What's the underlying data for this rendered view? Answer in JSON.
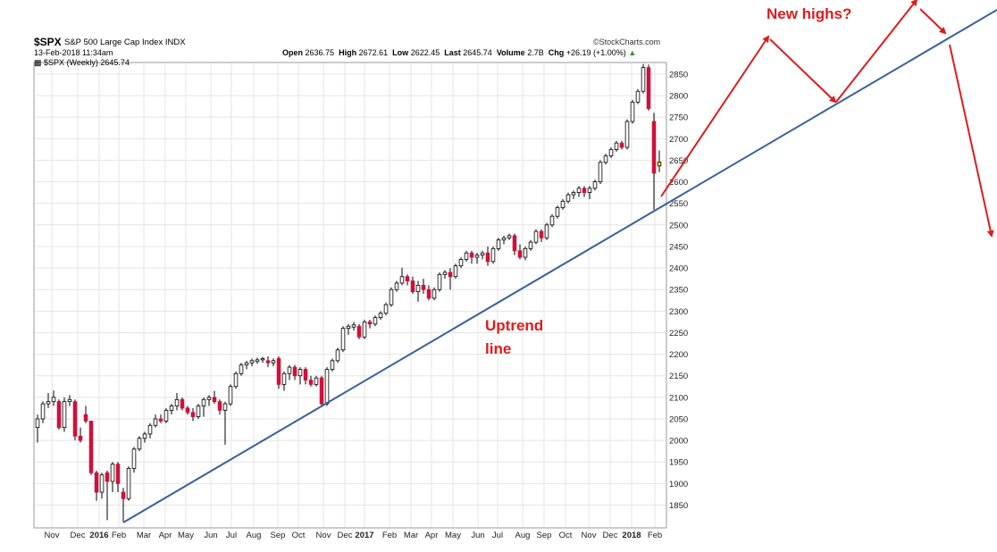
{
  "header": {
    "symbol": "$SPX",
    "index_name": "S&P 500 Large Cap Index",
    "index_tag": "INDX",
    "date_time": "13-Feb-2018 11:34am",
    "series_label": "$SPX (Weekly) 2645.74",
    "watermark": "StockCharts.com",
    "open_label": "Open",
    "open": "2636.75",
    "high_label": "High",
    "high": "2672.61",
    "low_label": "Low",
    "low": "2622.45",
    "last_label": "Last",
    "last": "2645.74",
    "volume_label": "Volume",
    "volume": "2.7B",
    "chg_label": "Chg",
    "chg": "+26.19 (+1.00%)"
  },
  "annotations": {
    "new_highs": "New highs?",
    "uptrend_line1": "Uptrend",
    "uptrend_line2": "line"
  },
  "colors": {
    "up": "#ffffff",
    "down": "#d0103a",
    "current": "#f2e600",
    "trendline": "#3a5fa0",
    "arrows": "#e01b1b",
    "grid": "#e4e4e4"
  },
  "chart_data": {
    "type": "candlestick",
    "frequency": "weekly",
    "x_tick_labels": [
      "Nov",
      "Dec",
      "2016",
      "Feb",
      "Mar",
      "Apr",
      "May",
      "Jun",
      "Jul",
      "Aug",
      "Sep",
      "Oct",
      "Nov",
      "Dec",
      "2017",
      "Feb",
      "Mar",
      "Apr",
      "May",
      "Jun",
      "Jul",
      "Aug",
      "Sep",
      "Oct",
      "Nov",
      "Dec",
      "2018",
      "Feb"
    ],
    "y_ticks": [
      1850,
      1900,
      1950,
      2000,
      2050,
      2100,
      2150,
      2200,
      2250,
      2300,
      2350,
      2400,
      2450,
      2500,
      2550,
      2600,
      2650,
      2700,
      2750,
      2800,
      2850
    ],
    "ylim": [
      1810,
      2880
    ],
    "trendline": {
      "from": {
        "date": "2016-02-11",
        "value": 1812
      },
      "to": "extends beyond chart, rising"
    },
    "candles": [
      {
        "o": 2030,
        "h": 2060,
        "l": 1995,
        "c": 2050
      },
      {
        "o": 2050,
        "h": 2090,
        "l": 2040,
        "c": 2085
      },
      {
        "o": 2085,
        "h": 2110,
        "l": 2075,
        "c": 2090
      },
      {
        "o": 2090,
        "h": 2116,
        "l": 2080,
        "c": 2100
      },
      {
        "o": 2090,
        "h": 2095,
        "l": 2025,
        "c": 2030
      },
      {
        "o": 2030,
        "h": 2100,
        "l": 2020,
        "c": 2090
      },
      {
        "o": 2090,
        "h": 2105,
        "l": 2080,
        "c": 2095
      },
      {
        "o": 2090,
        "h": 2095,
        "l": 2000,
        "c": 2010
      },
      {
        "o": 2010,
        "h": 2030,
        "l": 1995,
        "c": 2000
      },
      {
        "o": 2060,
        "h": 2080,
        "l": 2040,
        "c": 2045
      },
      {
        "o": 2045,
        "h": 2045,
        "l": 1920,
        "c": 1925
      },
      {
        "o": 1925,
        "h": 1930,
        "l": 1860,
        "c": 1880
      },
      {
        "o": 1880,
        "h": 1925,
        "l": 1865,
        "c": 1920
      },
      {
        "o": 1925,
        "h": 1930,
        "l": 1815,
        "c": 1905
      },
      {
        "o": 1905,
        "h": 1950,
        "l": 1880,
        "c": 1945
      },
      {
        "o": 1945,
        "h": 1950,
        "l": 1880,
        "c": 1900
      },
      {
        "o": 1880,
        "h": 1890,
        "l": 1812,
        "c": 1865
      },
      {
        "o": 1865,
        "h": 1940,
        "l": 1860,
        "c": 1935
      },
      {
        "o": 1935,
        "h": 1985,
        "l": 1925,
        "c": 1980
      },
      {
        "o": 1980,
        "h": 2010,
        "l": 1975,
        "c": 2005
      },
      {
        "o": 2005,
        "h": 2020,
        "l": 1995,
        "c": 2015
      },
      {
        "o": 2015,
        "h": 2040,
        "l": 2005,
        "c": 2035
      },
      {
        "o": 2035,
        "h": 2060,
        "l": 2030,
        "c": 2050
      },
      {
        "o": 2050,
        "h": 2060,
        "l": 2040,
        "c": 2045
      },
      {
        "o": 2045,
        "h": 2075,
        "l": 2040,
        "c": 2070
      },
      {
        "o": 2070,
        "h": 2085,
        "l": 2060,
        "c": 2080
      },
      {
        "o": 2080,
        "h": 2110,
        "l": 2070,
        "c": 2095
      },
      {
        "o": 2095,
        "h": 2100,
        "l": 2070,
        "c": 2075
      },
      {
        "o": 2075,
        "h": 2080,
        "l": 2060,
        "c": 2065
      },
      {
        "o": 2065,
        "h": 2075,
        "l": 2045,
        "c": 2055
      },
      {
        "o": 2055,
        "h": 2085,
        "l": 2050,
        "c": 2080
      },
      {
        "o": 2080,
        "h": 2100,
        "l": 2055,
        "c": 2095
      },
      {
        "o": 2095,
        "h": 2105,
        "l": 2080,
        "c": 2100
      },
      {
        "o": 2100,
        "h": 2115,
        "l": 2085,
        "c": 2090
      },
      {
        "o": 2090,
        "h": 2095,
        "l": 2060,
        "c": 2070
      },
      {
        "o": 2070,
        "h": 2090,
        "l": 1990,
        "c": 2085
      },
      {
        "o": 2085,
        "h": 2130,
        "l": 2080,
        "c": 2125
      },
      {
        "o": 2125,
        "h": 2160,
        "l": 2120,
        "c": 2155
      },
      {
        "o": 2155,
        "h": 2180,
        "l": 2150,
        "c": 2175
      },
      {
        "o": 2175,
        "h": 2185,
        "l": 2165,
        "c": 2180
      },
      {
        "o": 2180,
        "h": 2190,
        "l": 2172,
        "c": 2185
      },
      {
        "o": 2183,
        "h": 2192,
        "l": 2178,
        "c": 2187
      },
      {
        "o": 2187,
        "h": 2194,
        "l": 2180,
        "c": 2190
      },
      {
        "o": 2185,
        "h": 2195,
        "l": 2170,
        "c": 2180
      },
      {
        "o": 2180,
        "h": 2190,
        "l": 2172,
        "c": 2185
      },
      {
        "o": 2190,
        "h": 2195,
        "l": 2120,
        "c": 2130
      },
      {
        "o": 2130,
        "h": 2160,
        "l": 2115,
        "c": 2155
      },
      {
        "o": 2155,
        "h": 2175,
        "l": 2140,
        "c": 2170
      },
      {
        "o": 2170,
        "h": 2175,
        "l": 2140,
        "c": 2150
      },
      {
        "o": 2150,
        "h": 2170,
        "l": 2130,
        "c": 2165
      },
      {
        "o": 2165,
        "h": 2170,
        "l": 2130,
        "c": 2140
      },
      {
        "o": 2140,
        "h": 2150,
        "l": 2125,
        "c": 2130
      },
      {
        "o": 2130,
        "h": 2150,
        "l": 2125,
        "c": 2145
      },
      {
        "o": 2145,
        "h": 2150,
        "l": 2080,
        "c": 2085
      },
      {
        "o": 2085,
        "h": 2170,
        "l": 2080,
        "c": 2165
      },
      {
        "o": 2165,
        "h": 2190,
        "l": 2160,
        "c": 2185
      },
      {
        "o": 2185,
        "h": 2215,
        "l": 2180,
        "c": 2210
      },
      {
        "o": 2210,
        "h": 2265,
        "l": 2205,
        "c": 2260
      },
      {
        "o": 2260,
        "h": 2270,
        "l": 2245,
        "c": 2265
      },
      {
        "o": 2263,
        "h": 2275,
        "l": 2255,
        "c": 2268
      },
      {
        "o": 2265,
        "h": 2270,
        "l": 2235,
        "c": 2240
      },
      {
        "o": 2240,
        "h": 2280,
        "l": 2235,
        "c": 2275
      },
      {
        "o": 2275,
        "h": 2280,
        "l": 2260,
        "c": 2270
      },
      {
        "o": 2270,
        "h": 2290,
        "l": 2265,
        "c": 2285
      },
      {
        "o": 2285,
        "h": 2300,
        "l": 2280,
        "c": 2295
      },
      {
        "o": 2295,
        "h": 2320,
        "l": 2290,
        "c": 2315
      },
      {
        "o": 2315,
        "h": 2355,
        "l": 2310,
        "c": 2350
      },
      {
        "o": 2350,
        "h": 2370,
        "l": 2345,
        "c": 2365
      },
      {
        "o": 2365,
        "h": 2401,
        "l": 2360,
        "c": 2380
      },
      {
        "o": 2380,
        "h": 2385,
        "l": 2360,
        "c": 2370
      },
      {
        "o": 2370,
        "h": 2380,
        "l": 2340,
        "c": 2345
      },
      {
        "o": 2345,
        "h": 2370,
        "l": 2322,
        "c": 2360
      },
      {
        "o": 2360,
        "h": 2375,
        "l": 2340,
        "c": 2350
      },
      {
        "o": 2350,
        "h": 2360,
        "l": 2325,
        "c": 2330
      },
      {
        "o": 2330,
        "h": 2355,
        "l": 2325,
        "c": 2350
      },
      {
        "o": 2350,
        "h": 2390,
        "l": 2345,
        "c": 2385
      },
      {
        "o": 2385,
        "h": 2395,
        "l": 2375,
        "c": 2390
      },
      {
        "o": 2390,
        "h": 2400,
        "l": 2350,
        "c": 2380
      },
      {
        "o": 2380,
        "h": 2410,
        "l": 2375,
        "c": 2405
      },
      {
        "o": 2405,
        "h": 2425,
        "l": 2400,
        "c": 2420
      },
      {
        "o": 2420,
        "h": 2440,
        "l": 2415,
        "c": 2435
      },
      {
        "o": 2435,
        "h": 2440,
        "l": 2410,
        "c": 2425
      },
      {
        "o": 2425,
        "h": 2435,
        "l": 2410,
        "c": 2430
      },
      {
        "o": 2430,
        "h": 2440,
        "l": 2420,
        "c": 2435
      },
      {
        "o": 2435,
        "h": 2450,
        "l": 2405,
        "c": 2415
      },
      {
        "o": 2415,
        "h": 2450,
        "l": 2410,
        "c": 2445
      },
      {
        "o": 2445,
        "h": 2470,
        "l": 2440,
        "c": 2465
      },
      {
        "o": 2465,
        "h": 2475,
        "l": 2455,
        "c": 2470
      },
      {
        "o": 2470,
        "h": 2480,
        "l": 2465,
        "c": 2475
      },
      {
        "o": 2475,
        "h": 2480,
        "l": 2430,
        "c": 2440
      },
      {
        "o": 2440,
        "h": 2455,
        "l": 2420,
        "c": 2425
      },
      {
        "o": 2425,
        "h": 2450,
        "l": 2418,
        "c": 2445
      },
      {
        "o": 2445,
        "h": 2465,
        "l": 2440,
        "c": 2460
      },
      {
        "o": 2460,
        "h": 2490,
        "l": 2455,
        "c": 2485
      },
      {
        "o": 2485,
        "h": 2490,
        "l": 2460,
        "c": 2470
      },
      {
        "o": 2470,
        "h": 2505,
        "l": 2465,
        "c": 2500
      },
      {
        "o": 2500,
        "h": 2525,
        "l": 2495,
        "c": 2520
      },
      {
        "o": 2520,
        "h": 2545,
        "l": 2515,
        "c": 2540
      },
      {
        "o": 2540,
        "h": 2560,
        "l": 2535,
        "c": 2555
      },
      {
        "o": 2555,
        "h": 2575,
        "l": 2550,
        "c": 2570
      },
      {
        "o": 2570,
        "h": 2580,
        "l": 2560,
        "c": 2575
      },
      {
        "o": 2575,
        "h": 2590,
        "l": 2565,
        "c": 2585
      },
      {
        "o": 2585,
        "h": 2590,
        "l": 2565,
        "c": 2575
      },
      {
        "o": 2575,
        "h": 2590,
        "l": 2560,
        "c": 2585
      },
      {
        "o": 2585,
        "h": 2605,
        "l": 2580,
        "c": 2600
      },
      {
        "o": 2600,
        "h": 2650,
        "l": 2595,
        "c": 2645
      },
      {
        "o": 2645,
        "h": 2665,
        "l": 2640,
        "c": 2660
      },
      {
        "o": 2660,
        "h": 2680,
        "l": 2655,
        "c": 2675
      },
      {
        "o": 2675,
        "h": 2695,
        "l": 2670,
        "c": 2690
      },
      {
        "o": 2690,
        "h": 2695,
        "l": 2675,
        "c": 2680
      },
      {
        "o": 2680,
        "h": 2745,
        "l": 2675,
        "c": 2740
      },
      {
        "o": 2740,
        "h": 2790,
        "l": 2735,
        "c": 2785
      },
      {
        "o": 2785,
        "h": 2815,
        "l": 2780,
        "c": 2810
      },
      {
        "o": 2810,
        "h": 2873,
        "l": 2805,
        "c": 2865
      },
      {
        "o": 2865,
        "h": 2872,
        "l": 2765,
        "c": 2770
      },
      {
        "o": 2740,
        "h": 2760,
        "l": 2535,
        "c": 2620
      },
      {
        "o": 2636.75,
        "h": 2672.61,
        "l": 2622.45,
        "c": 2645.74,
        "current": true
      }
    ]
  }
}
